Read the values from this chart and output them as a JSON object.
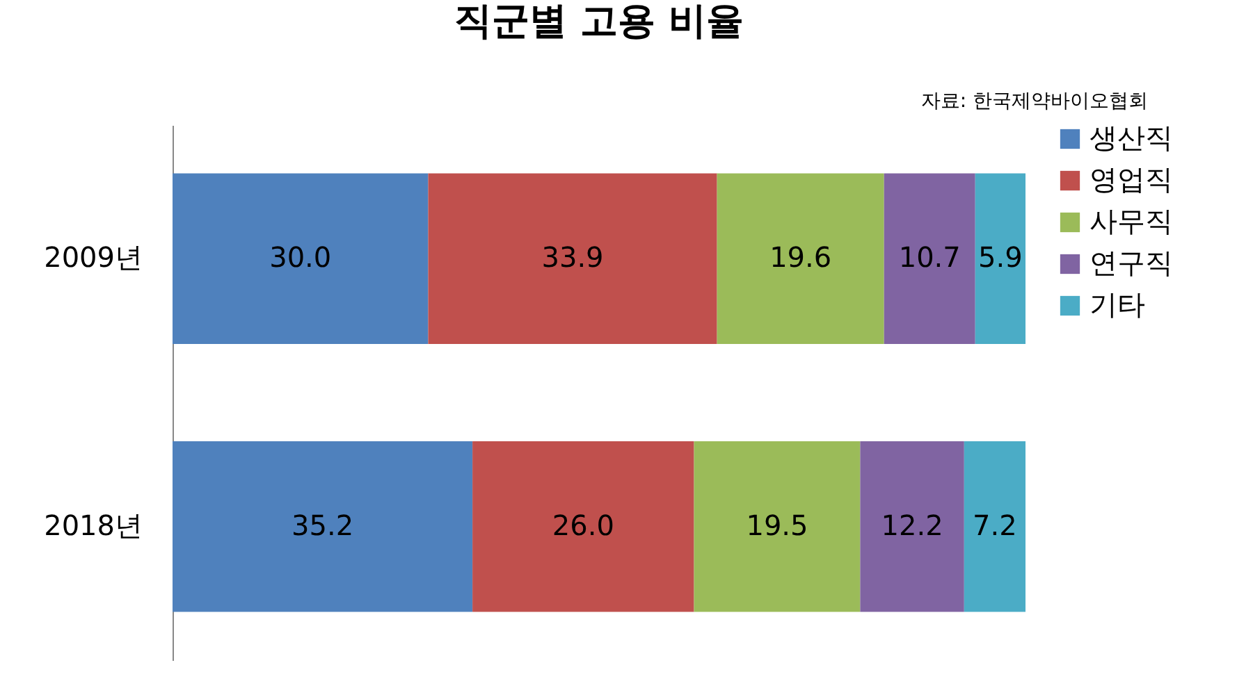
{
  "chart_data": {
    "type": "bar",
    "orientation": "horizontal",
    "stacked": true,
    "title": "직군별 고용 비율",
    "annotations": [
      "자료: 한국제약바이오협회"
    ],
    "categories": [
      "2009년",
      "2018년"
    ],
    "legend": "right",
    "grid": false,
    "series": [
      {
        "name": "생산직",
        "color": "#4f81bd",
        "values": [
          30.0,
          35.2
        ],
        "value_labels": [
          "30.0",
          "35.2"
        ]
      },
      {
        "name": "영업직",
        "color": "#c0504d",
        "values": [
          33.9,
          26.0
        ],
        "value_labels": [
          "33.9",
          "26.0"
        ]
      },
      {
        "name": "사무직",
        "color": "#9bbb59",
        "values": [
          19.6,
          19.5
        ],
        "value_labels": [
          "19.6",
          "19.5"
        ]
      },
      {
        "name": "연구직",
        "color": "#8064a2",
        "values": [
          10.7,
          12.2
        ],
        "value_labels": [
          "10.7",
          "12.2"
        ]
      },
      {
        "name": "기타",
        "color": "#4bacc6",
        "values": [
          5.9,
          7.2
        ],
        "value_labels": [
          "5.9",
          "7.2"
        ]
      }
    ]
  }
}
